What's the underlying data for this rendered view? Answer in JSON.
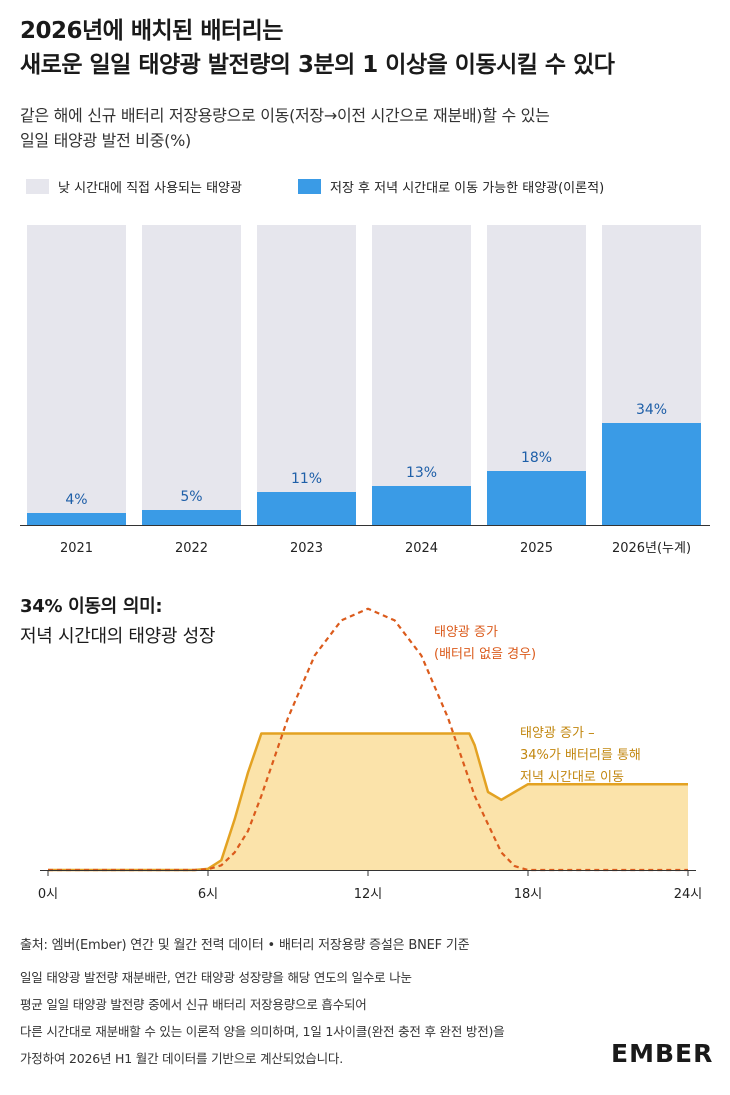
{
  "header": {
    "title_line1": "2026년에 배치된 배터리는",
    "title_line2": "새로운 일일 태양광 발전량의 3분의 1 이상을 이동시킬 수 있다",
    "subtitle_line1": "같은 해에 신규 배터리 저장용량으로 이동(저장→이전 시간으로 재분배)할 수 있는",
    "subtitle_line2": "일일 태양광 발전 비중(%)"
  },
  "legend": {
    "direct": "낮 시간대에 직접 사용되는 태양광",
    "shifted": "저장 후 저녁 시간대로 이동 가능한 태양광(이론적)"
  },
  "colors": {
    "direct": "#e6e6ed",
    "shifted": "#3a9be6",
    "bar_label": "#1e5fa8",
    "area_fill": "#fbe3aa",
    "area_line": "#e3a222",
    "dashed": "#db5b1c",
    "axis": "#333333"
  },
  "section2": {
    "title": "34% 이동의 의미:",
    "subtitle": "저녁 시간대의 태양광 성장"
  },
  "chart_data": [
    {
      "type": "bar",
      "stacked": true,
      "categories": [
        "2021",
        "2022",
        "2023",
        "2024",
        "2025",
        "2026년(누계)"
      ],
      "ylim": [
        0,
        100
      ],
      "series": [
        {
          "name": "저장 후 저녁 시간대로 이동 가능한 태양광(이론적)",
          "values": [
            4,
            5,
            11,
            13,
            18,
            34
          ]
        },
        {
          "name": "낮 시간대에 직접 사용되는 태양광",
          "values": [
            96,
            95,
            89,
            87,
            82,
            66
          ]
        }
      ],
      "data_labels": [
        "4%",
        "5%",
        "11%",
        "13%",
        "18%",
        "34%"
      ]
    },
    {
      "type": "area",
      "x_ticks": [
        "0시",
        "6시",
        "12시",
        "18시",
        "24시"
      ],
      "xlim": [
        0,
        24
      ],
      "series": [
        {
          "style": "dashed",
          "label_line1": "태양광 증가",
          "label_line2": "(배터리 없을 경우)",
          "x": [
            0,
            5.5,
            6,
            6.5,
            7,
            7.5,
            8,
            9,
            10,
            11,
            12,
            13,
            14,
            15,
            16,
            17,
            17.5,
            18,
            24
          ],
          "y": [
            0,
            0,
            0.2,
            1.2,
            4.5,
            10,
            19,
            39,
            55,
            64,
            67,
            64,
            55,
            39,
            19,
            4.5,
            1,
            0,
            0
          ]
        },
        {
          "style": "filled",
          "label_line1": "태양광 증가 –",
          "label_line2": "34%가 배터리를 통해",
          "label_line3": "저녁 시간대로 이동",
          "x": [
            0,
            5.5,
            6,
            6.5,
            7,
            7.5,
            8,
            15.8,
            16,
            16.5,
            17,
            17.5,
            18,
            24
          ],
          "y": [
            0,
            0,
            0.3,
            2.5,
            13,
            25,
            35,
            35,
            32,
            20,
            18,
            20,
            22,
            22
          ]
        }
      ]
    }
  ],
  "source": {
    "line": "출처: 엠버(Ember) 연간 및 월간 전력 데이터 • 배터리 저장용량 증설은 BNEF 기준"
  },
  "note": {
    "line1": "일일 태양광 발전량 재분배란, 연간 태양광 성장량을 해당 연도의 일수로 나눈",
    "line2": "평균 일일 태양광 발전량 중에서 신규 배터리 저장용량으로 흡수되어",
    "line3": "다른 시간대로 재분배할 수 있는 이론적 양을 의미하며, 1일 1사이클(완전 충전 후 완전 방전)을",
    "line4": "가정하여 2026년 H1 월간 데이터를 기반으로 계산되었습니다."
  },
  "logo": {
    "text": "EMBER"
  }
}
